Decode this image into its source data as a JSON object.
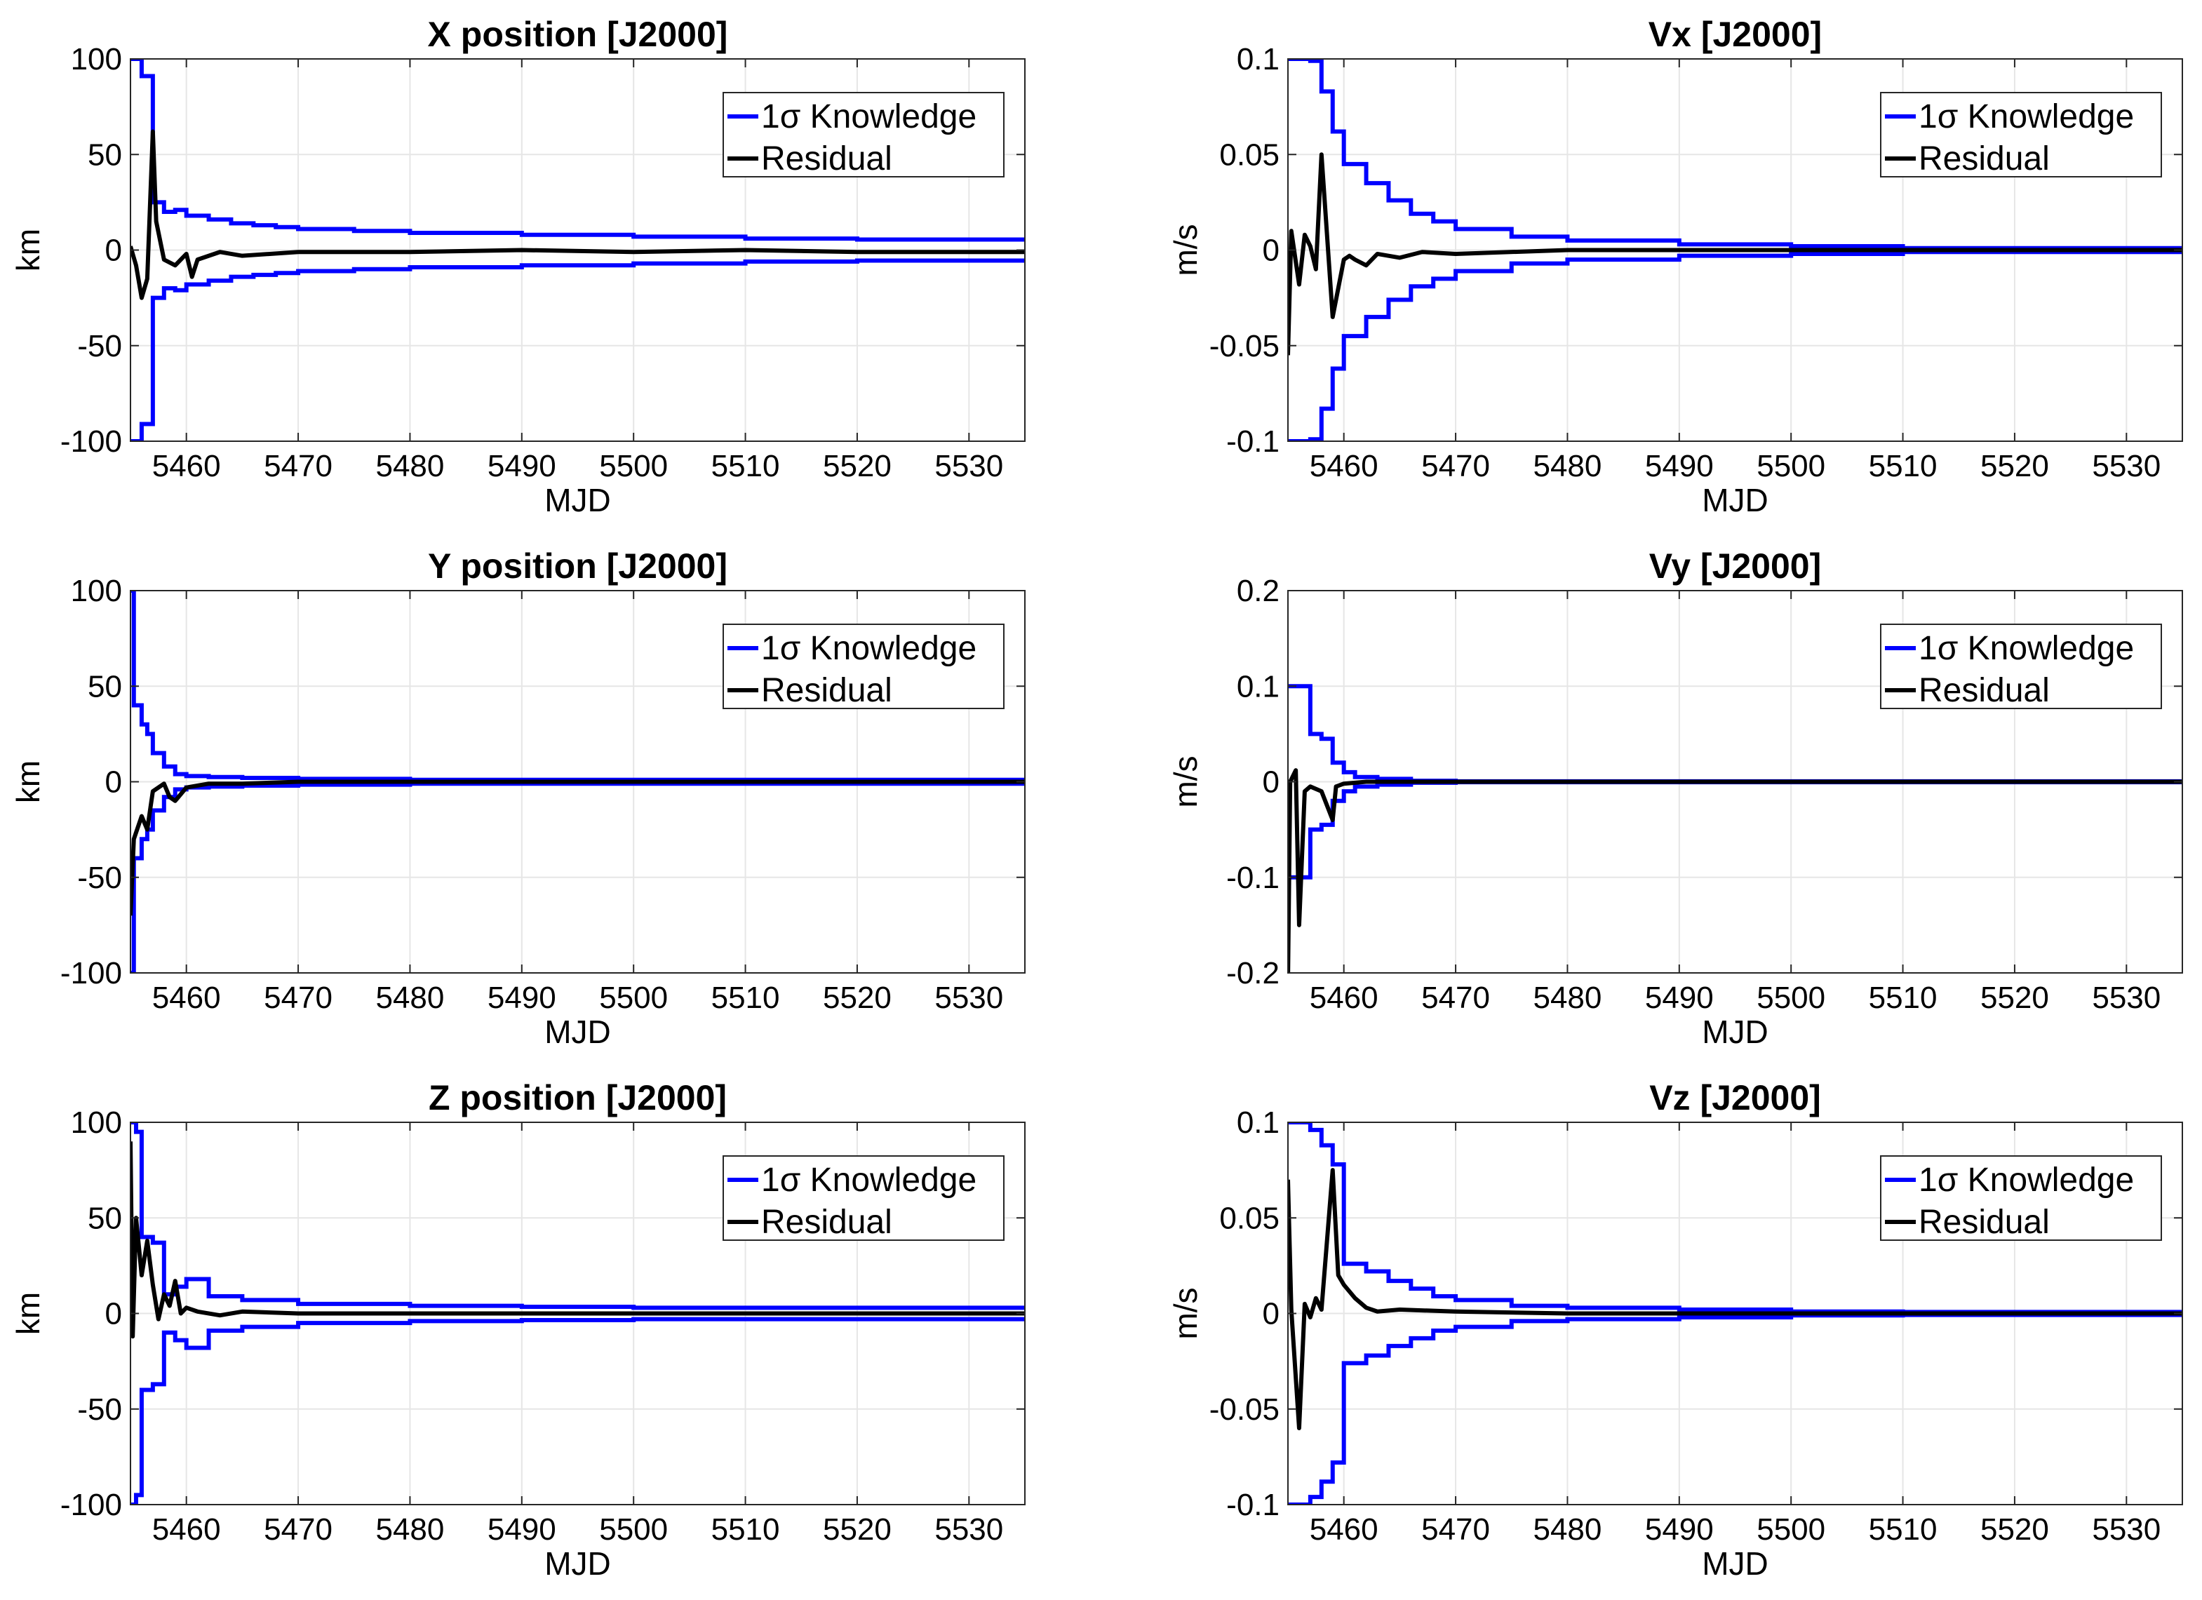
{
  "colors": {
    "knowledge": "#0000ff",
    "residual": "#000000",
    "grid": "#e6e6e6",
    "axes": "#262626"
  },
  "chart_data": [
    {
      "type": "line",
      "title": "X position [J2000]",
      "xlabel": "MJD",
      "ylabel": "km",
      "xlim": [
        5455,
        5535
      ],
      "ylim": [
        -100,
        100
      ],
      "xticks": [
        5460,
        5470,
        5480,
        5490,
        5500,
        5510,
        5520,
        5530
      ],
      "yticks": [
        -100,
        -50,
        0,
        50,
        100
      ],
      "ytick_labels": [
        "-100",
        "-50",
        "0",
        "50",
        "100"
      ],
      "grid": true,
      "legend_position": "top-right",
      "series": [
        {
          "name": "1σ Knowledge",
          "symmetric": true,
          "step": true,
          "x": [
            5455,
            5456,
            5457,
            5458,
            5459,
            5460,
            5462,
            5464,
            5466,
            5468,
            5470,
            5475,
            5480,
            5490,
            5500,
            5510,
            5520,
            5535
          ],
          "values": [
            100,
            91,
            25,
            20,
            21,
            18,
            16,
            14,
            13,
            12,
            11,
            10,
            9,
            8,
            7,
            6,
            5.5,
            5
          ]
        },
        {
          "name": "Residual",
          "x": [
            5455,
            5455.5,
            5456,
            5456.5,
            5457,
            5457.3,
            5458,
            5459,
            5460,
            5460.5,
            5461,
            5463,
            5465,
            5470,
            5480,
            5490,
            5500,
            5510,
            5520,
            5535
          ],
          "values": [
            2,
            -8,
            -25,
            -15,
            62,
            15,
            -5,
            -8,
            -2,
            -14,
            -5,
            -1,
            -3,
            -1,
            -1,
            0,
            -1,
            0,
            -1,
            -1
          ]
        }
      ]
    },
    {
      "type": "line",
      "title": "Vx [J2000]",
      "xlabel": "MJD",
      "ylabel": "m/s",
      "xlim": [
        5455,
        5535
      ],
      "ylim": [
        -0.1,
        0.1
      ],
      "xticks": [
        5460,
        5470,
        5480,
        5490,
        5500,
        5510,
        5520,
        5530
      ],
      "yticks": [
        -0.1,
        -0.05,
        0,
        0.05,
        0.1
      ],
      "ytick_labels": [
        "-0.1",
        "-0.05",
        "0",
        "0.05",
        "0.1"
      ],
      "grid": true,
      "legend_position": "top-right",
      "series": [
        {
          "name": "1σ Knowledge",
          "symmetric": true,
          "step": true,
          "x": [
            5455,
            5457,
            5458,
            5459,
            5460,
            5462,
            5464,
            5466,
            5468,
            5470,
            5475,
            5480,
            5490,
            5500,
            5510,
            5535
          ],
          "values": [
            0.1,
            0.099,
            0.083,
            0.062,
            0.045,
            0.035,
            0.026,
            0.019,
            0.015,
            0.011,
            0.007,
            0.005,
            0.003,
            0.002,
            0.001,
            0.001
          ]
        },
        {
          "name": "Residual",
          "x": [
            5455,
            5455.3,
            5456,
            5456.5,
            5457,
            5457.5,
            5458,
            5459,
            5460,
            5460.5,
            5461,
            5462,
            5463,
            5465,
            5467,
            5470,
            5480,
            5490,
            5535
          ],
          "values": [
            -0.055,
            0.01,
            -0.018,
            0.008,
            0.002,
            -0.01,
            0.05,
            -0.035,
            -0.005,
            -0.003,
            -0.005,
            -0.008,
            -0.002,
            -0.004,
            -0.001,
            -0.002,
            0,
            0,
            0
          ]
        }
      ]
    },
    {
      "type": "line",
      "title": "Y position [J2000]",
      "xlabel": "MJD",
      "ylabel": "km",
      "xlim": [
        5455,
        5535
      ],
      "ylim": [
        -100,
        100
      ],
      "xticks": [
        5460,
        5470,
        5480,
        5490,
        5500,
        5510,
        5520,
        5530
      ],
      "yticks": [
        -100,
        -50,
        0,
        50,
        100
      ],
      "ytick_labels": [
        "-100",
        "-50",
        "0",
        "50",
        "100"
      ],
      "grid": true,
      "legend_position": "top-right",
      "series": [
        {
          "name": "1σ Knowledge",
          "symmetric": true,
          "step": true,
          "x": [
            5455,
            5455.3,
            5456,
            5456.5,
            5457,
            5458,
            5459,
            5460,
            5462,
            5465,
            5470,
            5480,
            5535
          ],
          "values": [
            100,
            40,
            30,
            25,
            15,
            8,
            4,
            3,
            2.5,
            2,
            1.5,
            1,
            1
          ]
        },
        {
          "name": "Residual",
          "x": [
            5455,
            5455.3,
            5456,
            5456.5,
            5457,
            5458,
            5458.5,
            5459,
            5460,
            5461,
            5462,
            5465,
            5470,
            5535
          ],
          "values": [
            -70,
            -30,
            -18,
            -25,
            -5,
            -1,
            -8,
            -10,
            -3,
            -2,
            -1,
            -1,
            0,
            0
          ]
        }
      ]
    },
    {
      "type": "line",
      "title": "Vy [J2000]",
      "xlabel": "MJD",
      "ylabel": "m/s",
      "xlim": [
        5455,
        5535
      ],
      "ylim": [
        -0.2,
        0.2
      ],
      "xticks": [
        5460,
        5470,
        5480,
        5490,
        5500,
        5510,
        5520,
        5530
      ],
      "yticks": [
        -0.2,
        -0.1,
        0,
        0.1,
        0.2
      ],
      "ytick_labels": [
        "-0.2",
        "-0.1",
        "0",
        "0.1",
        "0.2"
      ],
      "grid": true,
      "legend_position": "top-right",
      "series": [
        {
          "name": "1σ Knowledge",
          "symmetric": true,
          "step": true,
          "x": [
            5455,
            5457,
            5458,
            5459,
            5460,
            5461,
            5463,
            5466,
            5470,
            5535
          ],
          "values": [
            0.1,
            0.05,
            0.045,
            0.02,
            0.01,
            0.005,
            0.003,
            0.001,
            0.0005,
            0.0005
          ]
        },
        {
          "name": "Residual",
          "x": [
            5455,
            5455.2,
            5455.7,
            5456,
            5456.5,
            5457,
            5458,
            5459,
            5459.3,
            5460,
            5461,
            5462,
            5535
          ],
          "values": [
            -0.21,
            0.0,
            0.012,
            -0.15,
            -0.01,
            -0.005,
            -0.01,
            -0.04,
            -0.005,
            -0.002,
            -0.001,
            0,
            0
          ]
        }
      ]
    },
    {
      "type": "line",
      "title": "Z position [J2000]",
      "xlabel": "MJD",
      "ylabel": "km",
      "xlim": [
        5455,
        5535
      ],
      "ylim": [
        -100,
        100
      ],
      "xticks": [
        5460,
        5470,
        5480,
        5490,
        5500,
        5510,
        5520,
        5530
      ],
      "yticks": [
        -100,
        -50,
        0,
        50,
        100
      ],
      "ytick_labels": [
        "-100",
        "-50",
        "0",
        "50",
        "100"
      ],
      "grid": true,
      "legend_position": "top-right",
      "series": [
        {
          "name": "1σ Knowledge",
          "symmetric": true,
          "step": true,
          "x": [
            5455,
            5455.5,
            5456,
            5457,
            5458,
            5459,
            5460,
            5462,
            5465,
            5470,
            5480,
            5490,
            5500,
            5535
          ],
          "values": [
            100,
            95,
            40,
            37,
            10,
            14,
            18,
            9,
            7,
            5,
            4,
            3.5,
            3,
            3
          ]
        },
        {
          "name": "Residual",
          "x": [
            5455,
            5455.2,
            5455.5,
            5456,
            5456.5,
            5457,
            5457.5,
            5458,
            5458.5,
            5459,
            5459.5,
            5460,
            5461,
            5463,
            5465,
            5470,
            5480,
            5535
          ],
          "values": [
            90,
            -12,
            50,
            20,
            38,
            15,
            -3,
            10,
            4,
            17,
            0,
            3,
            1,
            -1,
            1,
            0,
            0,
            0
          ]
        }
      ]
    },
    {
      "type": "line",
      "title": "Vz [J2000]",
      "xlabel": "MJD",
      "ylabel": "m/s",
      "xlim": [
        5455,
        5535
      ],
      "ylim": [
        -0.1,
        0.1
      ],
      "xticks": [
        5460,
        5470,
        5480,
        5490,
        5500,
        5510,
        5520,
        5530
      ],
      "yticks": [
        -0.1,
        -0.05,
        0,
        0.05,
        0.1
      ],
      "ytick_labels": [
        "-0.1",
        "-0.05",
        "0",
        "0.05",
        "0.1"
      ],
      "grid": true,
      "legend_position": "top-right",
      "series": [
        {
          "name": "1σ Knowledge",
          "symmetric": true,
          "step": true,
          "x": [
            5455,
            5457,
            5458,
            5459,
            5460,
            5462,
            5464,
            5466,
            5468,
            5470,
            5475,
            5480,
            5490,
            5500,
            5510,
            5535
          ],
          "values": [
            0.1,
            0.096,
            0.088,
            0.078,
            0.026,
            0.022,
            0.017,
            0.013,
            0.009,
            0.007,
            0.004,
            0.003,
            0.002,
            0.001,
            0.0008,
            0.0005
          ]
        },
        {
          "name": "Residual",
          "x": [
            5455,
            5455.3,
            5456,
            5456.5,
            5457,
            5457.5,
            5458,
            5459,
            5459.5,
            5460,
            5461,
            5462,
            5463,
            5465,
            5470,
            5480,
            5535
          ],
          "values": [
            0.07,
            0.002,
            -0.06,
            0.005,
            -0.002,
            0.008,
            0.002,
            0.075,
            0.02,
            0.015,
            0.008,
            0.003,
            0.001,
            0.002,
            0.001,
            0,
            0
          ]
        }
      ]
    }
  ]
}
